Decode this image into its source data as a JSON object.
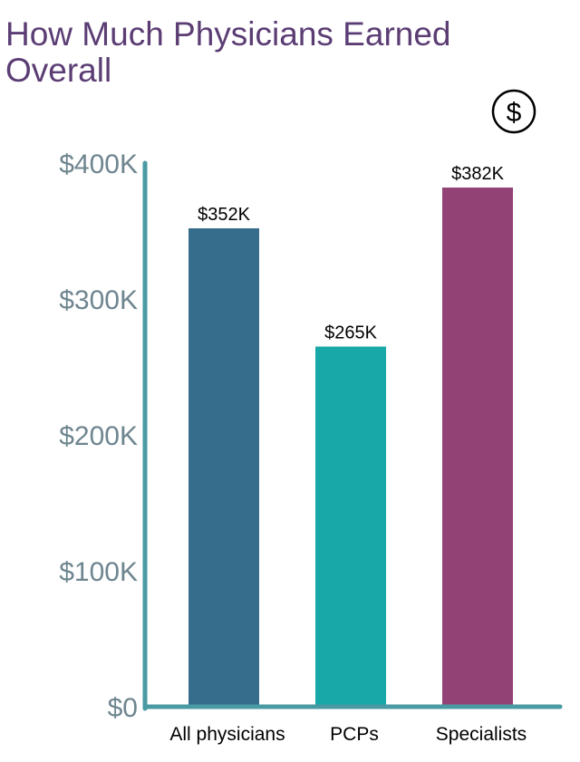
{
  "title_line1": "How Much Physicians Earned",
  "title_line2": "Overall",
  "icon": "dollar-circle-icon",
  "chart_data": {
    "type": "bar",
    "title": "How Much Physicians Earned Overall",
    "categories": [
      "All physicians",
      "PCPs",
      "Specialists"
    ],
    "values": [
      352,
      265,
      382
    ],
    "value_labels": [
      "$352K",
      "$265K",
      "$382K"
    ],
    "unit": "thousands of dollars",
    "ylim": [
      0,
      400
    ],
    "yticks": [
      0,
      100,
      200,
      300,
      400
    ],
    "ytick_labels": [
      "$0",
      "$100K",
      "$200K",
      "$300K",
      "$400K"
    ],
    "colors": [
      "#366c8c",
      "#17a8a7",
      "#934276"
    ],
    "axis_color": "#4a9aa3",
    "tick_label_color": "#6e858f",
    "grid": false,
    "legend": "none"
  }
}
